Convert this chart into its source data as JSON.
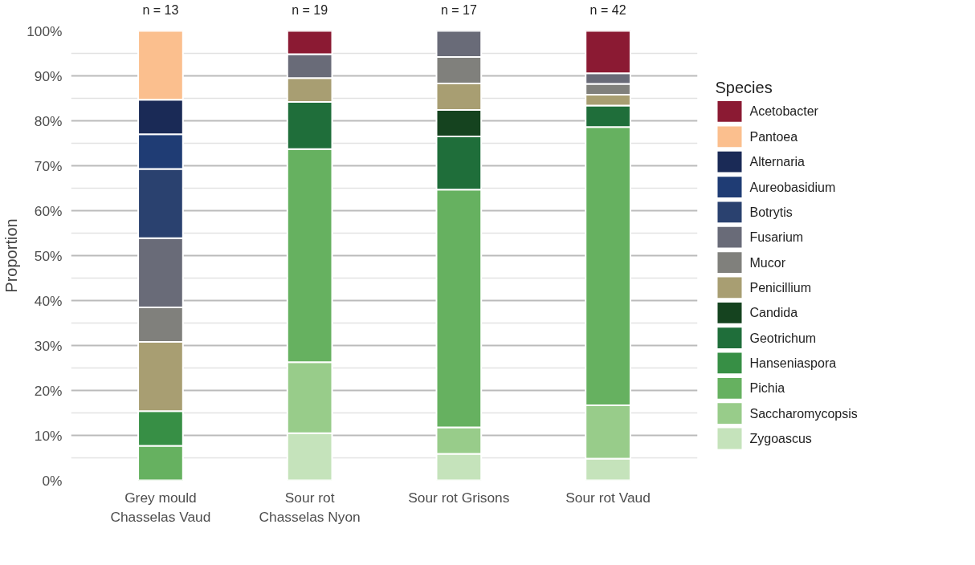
{
  "chart_data": {
    "type": "bar",
    "stacked": true,
    "ylabel": "Proportion",
    "legend_title": "Species",
    "legend": "right",
    "grid": "y",
    "categories": [
      "Grey mould\nChasselas Vaud",
      "Sour rot\nChasselas Nyon",
      "Sour rot Grisons",
      "Sour rot Vaud"
    ],
    "ylim": [
      0,
      100
    ],
    "yticks": [
      {
        "value": 0,
        "label": "0%"
      },
      {
        "value": 10,
        "label": "10%"
      },
      {
        "value": 20,
        "label": "20%"
      },
      {
        "value": 30,
        "label": "30%"
      },
      {
        "value": 40,
        "label": "40%"
      },
      {
        "value": 50,
        "label": "50%"
      },
      {
        "value": 60,
        "label": "60%"
      },
      {
        "value": 70,
        "label": "70%"
      },
      {
        "value": 80,
        "label": "80%"
      },
      {
        "value": 90,
        "label": "90%"
      },
      {
        "value": 100,
        "label": "100%"
      }
    ],
    "annotations": [
      "n = 13",
      "n = 19",
      "n = 17",
      "n = 42"
    ],
    "series": [
      {
        "name": "Zygoascus",
        "color": "#c5e3bb",
        "values": [
          null,
          10.5,
          5.9,
          4.8
        ]
      },
      {
        "name": "Saccharomycopsis",
        "color": "#98cc8a",
        "values": [
          null,
          15.8,
          5.9,
          11.9
        ]
      },
      {
        "name": "Pichia",
        "color": "#66b160",
        "values": [
          7.7,
          47.4,
          52.9,
          61.9
        ]
      },
      {
        "name": "Hanseniaspora",
        "color": "#378f45",
        "values": [
          7.7,
          null,
          null,
          null
        ]
      },
      {
        "name": "Geotrichum",
        "color": "#1f6e3a",
        "values": [
          null,
          10.5,
          11.8,
          4.8
        ]
      },
      {
        "name": "Candida",
        "color": "#15431f",
        "values": [
          null,
          null,
          5.9,
          null
        ]
      },
      {
        "name": "Penicillium",
        "color": "#a89e72",
        "values": [
          15.4,
          5.3,
          5.9,
          2.4
        ]
      },
      {
        "name": "Mucor",
        "color": "#80807c",
        "values": [
          7.7,
          null,
          5.9,
          2.4
        ]
      },
      {
        "name": "Fusarium",
        "color": "#696b78",
        "values": [
          15.4,
          5.3,
          5.9,
          2.4
        ]
      },
      {
        "name": "Botrytis",
        "color": "#2a416f",
        "values": [
          15.4,
          null,
          null,
          null
        ]
      },
      {
        "name": "Aureobasidium",
        "color": "#1f3c74",
        "values": [
          7.7,
          null,
          null,
          null
        ]
      },
      {
        "name": "Alternaria",
        "color": "#1a2a56",
        "values": [
          7.7,
          null,
          null,
          null
        ]
      },
      {
        "name": "Pantoea",
        "color": "#fbbf8e",
        "values": [
          15.4,
          null,
          null,
          null
        ]
      },
      {
        "name": "Acetobacter",
        "color": "#8b1a33",
        "values": [
          null,
          5.3,
          null,
          9.5
        ]
      }
    ]
  }
}
